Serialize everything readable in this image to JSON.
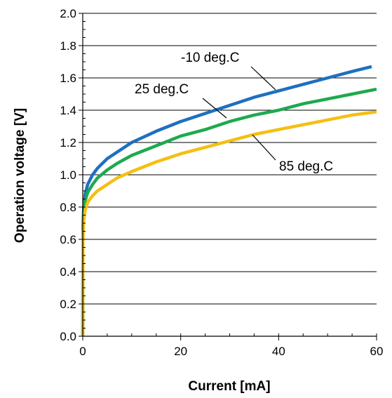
{
  "chart_data": {
    "type": "line",
    "xlabel": "Current [mA]",
    "ylabel": "Operation voltage [V]",
    "xlim": [
      0,
      60
    ],
    "ylim": [
      0,
      2.0
    ],
    "x_ticks": [
      "0",
      "20",
      "40",
      "60"
    ],
    "y_ticks": [
      "0.0",
      "0.2",
      "0.4",
      "0.6",
      "0.8",
      "1.0",
      "1.2",
      "1.4",
      "1.6",
      "1.8",
      "2.0"
    ],
    "grid": "horizontal",
    "series": [
      {
        "name": "-10 deg.C",
        "color": "#1f6fbf",
        "points": [
          [
            0,
            0
          ],
          [
            0.05,
            0.68
          ],
          [
            0.2,
            0.8
          ],
          [
            0.5,
            0.88
          ],
          [
            1,
            0.94
          ],
          [
            2,
            1.0
          ],
          [
            3,
            1.04
          ],
          [
            5,
            1.1
          ],
          [
            7,
            1.14
          ],
          [
            10,
            1.2
          ],
          [
            15,
            1.27
          ],
          [
            20,
            1.33
          ],
          [
            25,
            1.38
          ],
          [
            30,
            1.43
          ],
          [
            35,
            1.48
          ],
          [
            40,
            1.52
          ],
          [
            45,
            1.56
          ],
          [
            50,
            1.6
          ],
          [
            55,
            1.64
          ],
          [
            59,
            1.67
          ]
        ]
      },
      {
        "name": "25 deg.C",
        "color": "#1daa4e",
        "points": [
          [
            0,
            0
          ],
          [
            0.05,
            0.66
          ],
          [
            0.2,
            0.77
          ],
          [
            0.5,
            0.84
          ],
          [
            1,
            0.89
          ],
          [
            2,
            0.94
          ],
          [
            3,
            0.98
          ],
          [
            5,
            1.03
          ],
          [
            7,
            1.07
          ],
          [
            10,
            1.12
          ],
          [
            15,
            1.18
          ],
          [
            20,
            1.24
          ],
          [
            25,
            1.28
          ],
          [
            30,
            1.33
          ],
          [
            35,
            1.37
          ],
          [
            40,
            1.4
          ],
          [
            45,
            1.44
          ],
          [
            50,
            1.47
          ],
          [
            55,
            1.5
          ],
          [
            60,
            1.53
          ]
        ]
      },
      {
        "name": "85 deg.C",
        "color": "#f5bf12",
        "points": [
          [
            0,
            0
          ],
          [
            0.05,
            0.6
          ],
          [
            0.2,
            0.72
          ],
          [
            0.5,
            0.78
          ],
          [
            1,
            0.83
          ],
          [
            2,
            0.87
          ],
          [
            3,
            0.9
          ],
          [
            5,
            0.94
          ],
          [
            7,
            0.98
          ],
          [
            10,
            1.02
          ],
          [
            15,
            1.08
          ],
          [
            20,
            1.13
          ],
          [
            25,
            1.17
          ],
          [
            30,
            1.21
          ],
          [
            35,
            1.25
          ],
          [
            40,
            1.28
          ],
          [
            45,
            1.31
          ],
          [
            50,
            1.34
          ],
          [
            55,
            1.37
          ],
          [
            60,
            1.39
          ]
        ]
      }
    ],
    "annotations": [
      {
        "text": "-10 deg.C",
        "series": 0
      },
      {
        "text": "25 deg.C",
        "series": 1
      },
      {
        "text": "85 deg.C",
        "series": 2
      }
    ]
  }
}
